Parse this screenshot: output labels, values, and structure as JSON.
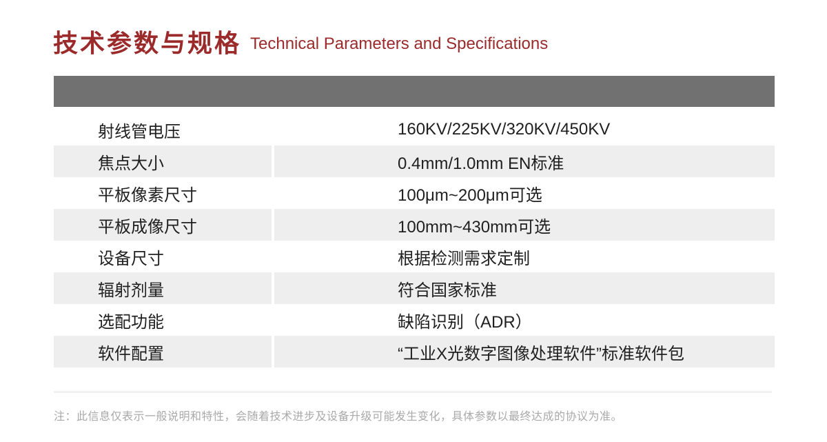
{
  "header": {
    "title_zh": "技术参数与规格",
    "title_en": "Technical Parameters and Specifications"
  },
  "table": {
    "rows": [
      {
        "label": "射线管电压",
        "value": "160KV/225KV/320KV/450KV"
      },
      {
        "label": "焦点大小",
        "value": "0.4mm/1.0mm EN标准"
      },
      {
        "label": "平板像素尺寸",
        "value": "100μm~200μm可选"
      },
      {
        "label": "平板成像尺寸",
        "value": "100mm~430mm可选"
      },
      {
        "label": "设备尺寸",
        "value": "根据检测需求定制"
      },
      {
        "label": "辐射剂量",
        "value": "符合国家标准"
      },
      {
        "label": "选配功能",
        "value": "缺陷识别（ADR）"
      },
      {
        "label": "软件配置",
        "value": "“工业X光数字图像处理软件”标准软件包"
      }
    ]
  },
  "footnote": {
    "text": "注：此信息仅表示一般说明和特性，会随着技术进步及设备升级可能发生变化，具体参数以最终达成的协议为准。"
  },
  "colors": {
    "accent_red": "#9B2A2B",
    "band_gray": "#717171",
    "stripe_gray": "#EEEEEE",
    "text_dark": "#1F1F1F",
    "note_gray": "#A9A9A9"
  }
}
